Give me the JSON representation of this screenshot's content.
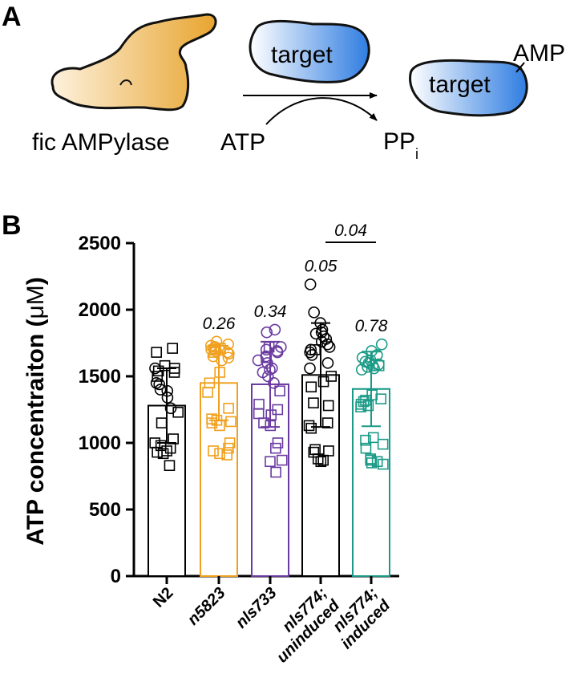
{
  "panel_a": {
    "letter": "A",
    "enzyme_label": "fic AMPylase",
    "target_label": "target",
    "target_modified_label": "target",
    "amp_label": "AMP",
    "substrate_label": "ATP",
    "product_label": "PP",
    "product_subscript": "i",
    "colors": {
      "enzyme": "#e8a530",
      "target": "#2f7de1"
    }
  },
  "panel_b": {
    "letter": "B"
  },
  "chart_data": {
    "type": "bar",
    "ylabel_text": "ATP concentraiton (",
    "ylabel_unit": "μM",
    "ylabel_close": ")",
    "ylim": [
      0,
      2500
    ],
    "yticks": [
      0,
      500,
      1000,
      1500,
      2000,
      2500
    ],
    "categories": [
      {
        "lines": [
          "N2"
        ],
        "italic": false
      },
      {
        "lines": [
          "n5823"
        ],
        "italic": true
      },
      {
        "lines": [
          "nls733"
        ],
        "italic": true
      },
      {
        "lines": [
          "nls774;",
          "uninduced"
        ],
        "italic": true
      },
      {
        "lines": [
          "nls774;",
          "induced"
        ],
        "italic": true
      }
    ],
    "colors": [
      "#000000",
      "#f0a01e",
      "#6a3aa0",
      "#000000",
      "#1a9a86"
    ],
    "means": [
      1280,
      1450,
      1440,
      1510,
      1405
    ],
    "sd": [
      280,
      280,
      320,
      390,
      280
    ],
    "pvalues": [
      "",
      "0.26",
      "0.34",
      "0.05",
      "0.78"
    ],
    "bracket": {
      "from": 3,
      "to": 4,
      "label": "0.04"
    },
    "points": [
      {
        "circles": [
          1440,
          1390,
          1450,
          1340,
          1400,
          1260,
          1560
        ],
        "squares": [
          1710,
          1680,
          1580,
          1560,
          1540,
          1530,
          1500,
          1230,
          1150,
          1030,
          1000,
          980,
          960,
          940,
          930,
          920,
          830
        ]
      },
      {
        "circles": [
          1760,
          1740,
          1730,
          1720,
          1710,
          1700,
          1690,
          1680,
          1670,
          1650,
          1640,
          1620
        ],
        "squares": [
          1710,
          1700,
          1680,
          1530,
          1450,
          1380,
          1260,
          1180,
          1170,
          1160,
          1150,
          1130,
          1000,
          960,
          940,
          920,
          910
        ]
      },
      {
        "circles": [
          1850,
          1830,
          1720,
          1700,
          1690,
          1680,
          1650,
          1620,
          1600,
          1560,
          1550,
          1530,
          1500,
          1450
        ],
        "squares": [
          1720,
          1640,
          1390,
          1290,
          1250,
          1220,
          1210,
          1150,
          1130,
          1000,
          960,
          870,
          860,
          780
        ]
      },
      {
        "circles": [
          2190,
          1980,
          1900,
          1850,
          1830,
          1820,
          1800,
          1780,
          1760,
          1740,
          1720,
          1700,
          1680,
          1660,
          1600,
          1560
        ],
        "squares": [
          1700,
          1500,
          1460,
          1420,
          1300,
          1280,
          1150,
          1130,
          1110,
          950,
          940,
          930,
          880,
          870,
          860
        ]
      },
      {
        "circles": [
          1740,
          1690,
          1660,
          1640,
          1620,
          1610,
          1600,
          1590,
          1580,
          1570,
          1560,
          1550
        ],
        "squares": [
          1580,
          1360,
          1330,
          1320,
          1310,
          1290,
          1280,
          1270,
          1040,
          1020,
          990,
          960,
          880,
          870,
          860,
          850,
          840
        ]
      }
    ]
  }
}
